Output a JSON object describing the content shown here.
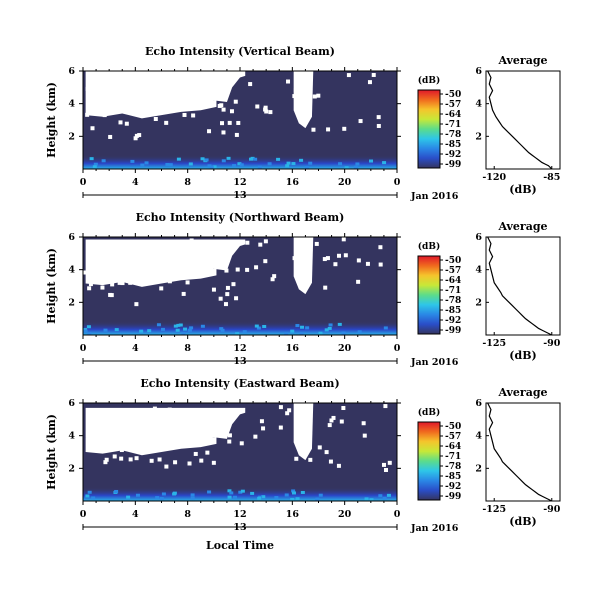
{
  "chart_data": {
    "type": "heatmap",
    "panels": [
      {
        "title": "Echo Intensity (Vertical Beam)",
        "ylabel": "Height (km)",
        "yticks": [
          "6",
          "4",
          "2"
        ],
        "xticks": [
          "0",
          "4",
          "8",
          "12",
          "16",
          "20",
          "0"
        ],
        "date_tick": "13",
        "date_label": "Jan 2016",
        "xlim": [
          0,
          24
        ],
        "ylim": [
          0,
          6
        ],
        "colorbar": {
          "unit": "(dB)",
          "ticks": [
            "-50",
            "-57",
            "-64",
            "-71",
            "-78",
            "-85",
            "-92",
            "-99"
          ]
        },
        "gap": {
          "upper": [
            [
              0.2,
              6.0
            ],
            [
              0.5,
              5.8
            ],
            [
              1.0,
              5.6
            ],
            [
              1.5,
              5.5
            ],
            [
              2.0,
              5.4
            ],
            [
              2.5,
              5.5
            ],
            [
              3.0,
              5.9
            ],
            [
              4.0,
              5.9
            ],
            [
              5.0,
              6.0
            ],
            [
              6.0,
              6.0
            ],
            [
              7.0,
              5.9
            ],
            [
              8.0,
              5.9
            ],
            [
              9.0,
              5.9
            ],
            [
              10.0,
              6.0
            ],
            [
              11.0,
              6.0
            ],
            [
              11.6,
              4.8
            ],
            [
              12.4,
              5.2
            ],
            [
              13.0,
              4.3
            ],
            [
              14.0,
              4.1
            ],
            [
              15.0,
              4.0
            ],
            [
              15.6,
              3.9
            ],
            [
              16.0,
              3.0
            ],
            [
              16.5,
              2.5
            ],
            [
              17.2,
              2.6
            ],
            [
              17.6,
              4.3
            ],
            [
              18.4,
              4.6
            ],
            [
              19.0,
              6.0
            ]
          ],
          "lower": [
            [
              19.0,
              6.0
            ],
            [
              17.8,
              6.0
            ],
            [
              16.0,
              6.0
            ],
            [
              15.6,
              6.0
            ],
            [
              13.0,
              6.0
            ],
            [
              11.0,
              6.0
            ],
            [
              10.0,
              6.0
            ],
            [
              8.0,
              6.0
            ],
            [
              6.0,
              6.0
            ],
            [
              4.0,
              6.0
            ],
            [
              2.0,
              6.0
            ],
            [
              0.2,
              6.0
            ]
          ],
          "note": "white (no-data) region"
        },
        "no_data_bottom": [
          [
            0.0,
            3.2
          ],
          [
            1.0,
            3.0
          ],
          [
            2.0,
            3.3
          ],
          [
            3.0,
            3.0
          ],
          [
            4.0,
            3.1
          ],
          [
            5.0,
            3.0
          ],
          [
            6.0,
            3.3
          ],
          [
            7.0,
            3.2
          ],
          [
            8.0,
            3.6
          ],
          [
            9.0,
            3.6
          ],
          [
            10.0,
            3.8
          ],
          [
            11.0,
            3.2
          ]
        ],
        "profile": {
          "title": "Average",
          "xlabel": "(dB)",
          "xticks": [
            "-120",
            "-85"
          ],
          "xlim": [
            -125,
            -80
          ],
          "yticks": [
            "6",
            "4",
            "2"
          ],
          "ylim": [
            0,
            6
          ],
          "x": [
            -124,
            -122,
            -123,
            -121,
            -123,
            -122,
            -121,
            -119,
            -117,
            -115,
            -113,
            -111,
            -109,
            -107,
            -105,
            -103,
            -101,
            -99,
            -97,
            -95,
            -93,
            -91,
            -89,
            -87,
            -86,
            -85
          ],
          "y": [
            6.0,
            5.6,
            5.2,
            4.8,
            4.4,
            4.0,
            3.6,
            3.2,
            2.9,
            2.6,
            2.4,
            2.2,
            2.0,
            1.8,
            1.6,
            1.4,
            1.2,
            1.0,
            0.85,
            0.7,
            0.55,
            0.4,
            0.3,
            0.2,
            0.1,
            0.0
          ]
        }
      },
      {
        "title": "Echo Intensity (Northward Beam)",
        "ylabel": "Height (km)",
        "yticks": [
          "6",
          "4",
          "2"
        ],
        "xticks": [
          "0",
          "4",
          "8",
          "12",
          "16",
          "20",
          "0"
        ],
        "date_tick": "13",
        "date_label": "Jan 2016",
        "xlim": [
          0,
          24
        ],
        "ylim": [
          0,
          6
        ],
        "colorbar": {
          "unit": "(dB)",
          "ticks": [
            "-50",
            "-57",
            "-64",
            "-71",
            "-78",
            "-85",
            "-92",
            "-99"
          ]
        },
        "profile": {
          "title": "Average",
          "xlabel": "(dB)",
          "xticks": [
            "-125",
            "-90"
          ],
          "xlim": [
            -130,
            -85
          ],
          "yticks": [
            "6",
            "4",
            "2"
          ],
          "ylim": [
            0,
            6
          ],
          "x": [
            -129,
            -127,
            -128,
            -126,
            -128,
            -127,
            -126,
            -125,
            -123,
            -121,
            -120,
            -118,
            -116,
            -114,
            -112,
            -110,
            -108,
            -106,
            -104,
            -102,
            -100,
            -98,
            -96,
            -94,
            -92,
            -90
          ],
          "y": [
            6.0,
            5.6,
            5.2,
            4.8,
            4.4,
            4.0,
            3.6,
            3.2,
            2.9,
            2.6,
            2.4,
            2.2,
            2.0,
            1.8,
            1.6,
            1.4,
            1.2,
            1.0,
            0.85,
            0.7,
            0.55,
            0.4,
            0.3,
            0.2,
            0.1,
            0.0
          ]
        }
      },
      {
        "title": "Echo Intensity (Eastward Beam)",
        "ylabel": "Height (km)",
        "yticks": [
          "6",
          "4",
          "2"
        ],
        "xticks": [
          "0",
          "4",
          "8",
          "12",
          "16",
          "20",
          "0"
        ],
        "date_tick": "13",
        "date_label": "Jan 2016",
        "xlabel": "Local Time",
        "xlim": [
          0,
          24
        ],
        "ylim": [
          0,
          6
        ],
        "colorbar": {
          "unit": "(dB)",
          "ticks": [
            "-50",
            "-57",
            "-64",
            "-71",
            "-78",
            "-85",
            "-92",
            "-99"
          ]
        },
        "profile": {
          "title": "Average",
          "xlabel": "(dB)",
          "xticks": [
            "-125",
            "-90"
          ],
          "xlim": [
            -130,
            -85
          ],
          "yticks": [
            "6",
            "4",
            "2"
          ],
          "ylim": [
            0,
            6
          ],
          "x": [
            -129,
            -127,
            -128,
            -126,
            -128,
            -127,
            -126,
            -125,
            -123,
            -121,
            -120,
            -118,
            -116,
            -114,
            -112,
            -110,
            -108,
            -106,
            -104,
            -102,
            -100,
            -98,
            -96,
            -94,
            -92,
            -90
          ],
          "y": [
            6.0,
            5.6,
            5.2,
            4.8,
            4.4,
            4.0,
            3.6,
            3.2,
            2.9,
            2.6,
            2.4,
            2.2,
            2.0,
            1.8,
            1.6,
            1.4,
            1.2,
            1.0,
            0.85,
            0.7,
            0.55,
            0.4,
            0.3,
            0.2,
            0.1,
            0.0
          ]
        }
      }
    ]
  },
  "colors": {
    "background_field": "#34345f",
    "near_ground": "#2a45c8",
    "no_data": "#ffffff",
    "colorbar_stops": [
      "#e0182a",
      "#f06a1e",
      "#f5c52c",
      "#c8e838",
      "#5cdc8a",
      "#2ec6e8",
      "#2a88e6",
      "#2a4ec8",
      "#34345f"
    ]
  }
}
